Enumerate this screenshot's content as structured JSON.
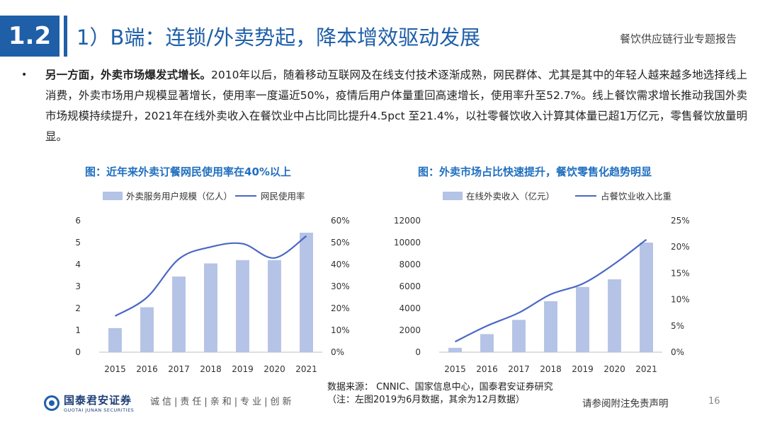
{
  "header": {
    "section_number": "1.2",
    "title": "1）B端：连锁/外卖势起，降本增效驱动发展",
    "report_name": "餐饮供应链行业专题报告"
  },
  "bullet": {
    "dot": "•",
    "lead": "另一方面，外卖市场爆发式增长。",
    "body": "2010年以后，随着移动互联网及在线支付技术逐渐成熟，网民群体、尤其是其中的年轻人越来越多地选择线上消费，外卖市场用户规模显著增长，使用率一度逼近50%，疫情后用户体量重回高速增长，使用率升至52.7%。线上餐饮需求增长推动我国外卖市场规模持续提升，2021年在线外卖收入在餐饮业中占比同比提升4.5pct 至21.4%，以社零餐饮收入计算其体量已超1万亿元，零售餐饮放量明显。"
  },
  "colors": {
    "accent": "#1f5fa8",
    "bar": "#b4c3e6",
    "line": "#4a68c5"
  },
  "chart_data": [
    {
      "type": "bar",
      "title": "图：近年来外卖订餐网民使用率在40%以上",
      "categories": [
        "2015",
        "2016",
        "2017",
        "2018",
        "2019",
        "2020",
        "2021"
      ],
      "series": [
        {
          "name": "外卖服务用户规模（亿人）",
          "type": "bar",
          "axis": "left",
          "values": [
            1.1,
            2.05,
            3.45,
            4.05,
            4.2,
            4.2,
            5.45
          ]
        },
        {
          "name": "网民使用率",
          "type": "line",
          "axis": "right",
          "values": [
            16.5,
            25,
            42.5,
            48,
            49.5,
            43,
            53
          ]
        }
      ],
      "ylim_left": [
        0,
        6
      ],
      "yticks_left": [
        "0",
        "1",
        "2",
        "3",
        "4",
        "5",
        "6"
      ],
      "ylim_right": [
        0,
        60
      ],
      "yticks_right": [
        "0%",
        "10%",
        "20%",
        "30%",
        "40%",
        "50%",
        "60%"
      ],
      "legend": "top",
      "grid": false
    },
    {
      "type": "bar",
      "title": "图：外卖市场占比快速提升，餐饮零售化趋势明显",
      "categories": [
        "2015",
        "2016",
        "2017",
        "2018",
        "2019",
        "2020",
        "2021"
      ],
      "series": [
        {
          "name": "在线外卖收入（亿元）",
          "type": "bar",
          "axis": "left",
          "values": [
            400,
            1650,
            2950,
            4650,
            5950,
            6650,
            10000
          ]
        },
        {
          "name": "占餐饮业收入比重",
          "type": "line",
          "axis": "right",
          "values": [
            2,
            5,
            7.5,
            11,
            13,
            16.8,
            21.4
          ]
        }
      ],
      "ylim_left": [
        0,
        12000
      ],
      "yticks_left": [
        "0",
        "2000",
        "4000",
        "6000",
        "8000",
        "10000",
        "12000"
      ],
      "ylim_right": [
        0,
        25
      ],
      "yticks_right": [
        "0%",
        "5%",
        "10%",
        "15%",
        "20%",
        "25%"
      ],
      "legend": "top",
      "grid": false
    }
  ],
  "footer": {
    "logo_cn": "国泰君安证券",
    "logo_en": "GUOTAI JUNAN SECURITIES",
    "motto": "诚信|责任|亲和|专业|创新",
    "source": "数据来源： CNNIC、国家信息中心，国泰君安证券研究（注：左图2019为6月数据，其余为12月数据）",
    "disclaimer": "请参阅附注免责声明",
    "page_number": "16"
  }
}
